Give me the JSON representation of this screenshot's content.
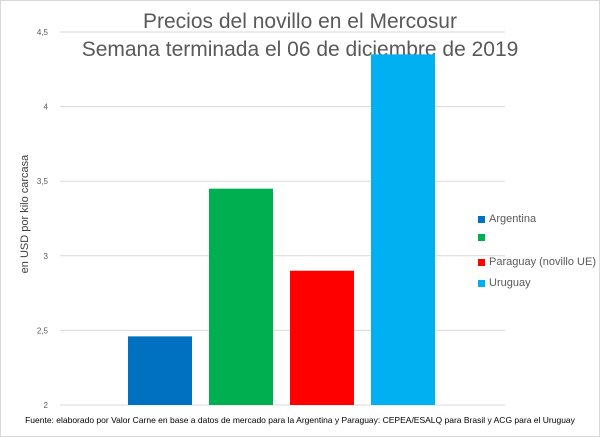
{
  "chart_data": {
    "type": "bar",
    "title": "Precios del novillo en el Mercosur",
    "subtitle": "Semana terminada el 06 de diciembre de 2019",
    "ylabel": "en USD por kilo carcasa",
    "xlabel": "",
    "ylim": [
      2,
      4.5
    ],
    "yticks": [
      2,
      2.5,
      3,
      3.5,
      4,
      4.5
    ],
    "ytick_labels": [
      "2",
      "2,5",
      "3",
      "3,5",
      "4",
      "4,5"
    ],
    "grid": true,
    "legend_position": "right",
    "series": [
      {
        "name": "Argentina",
        "value": 2.46,
        "color": "#0070c0"
      },
      {
        "name": "",
        "value": 3.45,
        "color": "#00b050"
      },
      {
        "name": "Paraguay (novillo UE)",
        "value": 2.9,
        "color": "#ff0000"
      },
      {
        "name": "Uruguay",
        "value": 4.35,
        "color": "#00b0f0"
      }
    ],
    "source": "Fuente: elaborado por Valor Carne en base a datos de mercado para la Argentina y Paraguay: CEPEA/ESALQ para Brasil y ACG para el Uruguay"
  }
}
